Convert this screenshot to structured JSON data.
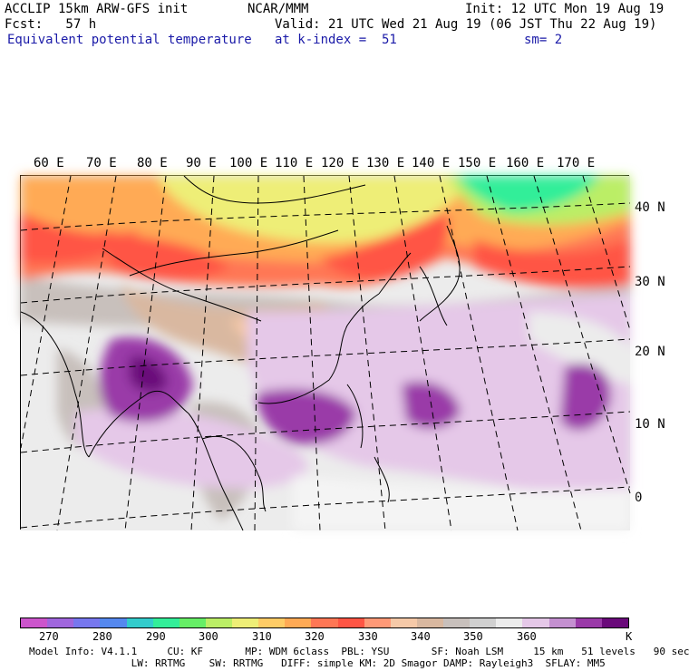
{
  "header": {
    "line1_left": "ACCLIP 15km ARW-GFS init",
    "line1_center": "NCAR/MMM",
    "line1_right": "Init: 12 UTC Mon 19 Aug 19",
    "line2_left": "Fcst:   57 h",
    "line2_right": "Valid: 21 UTC Wed 21 Aug 19 (06 JST Thu 22 Aug 19)",
    "line3_left": "Equivalent potential temperature",
    "line3_center": "at k-index =  51",
    "line3_right": "sm= 2"
  },
  "lon_labels": [
    "60 E",
    "70 E",
    "80 E",
    "90 E",
    "100 E",
    "110 E",
    "120 E",
    "130 E",
    "140 E",
    "150 E",
    "160 E",
    "170 E"
  ],
  "lat_labels": [
    "40 N",
    "30 N",
    "20 N",
    "10 N",
    "0"
  ],
  "colorbar": {
    "unit": "K",
    "labels": [
      "270",
      "280",
      "290",
      "300",
      "310",
      "320",
      "330",
      "340",
      "350",
      "360"
    ],
    "colors": [
      "#cc55cc",
      "#a066dd",
      "#7777ee",
      "#5588ee",
      "#33cccc",
      "#33ee99",
      "#66ee66",
      "#bbee66",
      "#eeee77",
      "#ffcc66",
      "#ffaa55",
      "#ff7755",
      "#ff5544",
      "#ff9977",
      "#f5c9a8",
      "#d9b8a0",
      "#c8c0bc",
      "#d0d0d0",
      "#ececec",
      "#e5c8e8",
      "#c490d0",
      "#9a3aa8",
      "#6a0a7a"
    ]
  },
  "footer": {
    "line1": "Model Info: V4.1.1     CU: KF       MP: WDM 6class  PBL: YSU       SF: Noah LSM     15 km   51 levels   90 sec",
    "line2": "                 LW: RRTMG    SW: RRTMG   DIFF: simple KM: 2D Smagor DAMP: Rayleigh3  SFLAY: MM5"
  }
}
